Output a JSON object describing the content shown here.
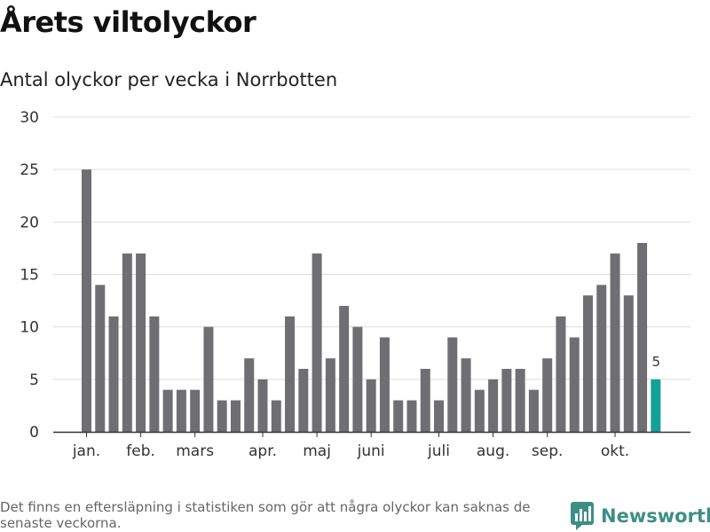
{
  "header": {
    "title": "Årets viltolyckor",
    "subtitle": "Antal olyckor per vecka i Norrbotten"
  },
  "footer": {
    "note": "Det finns en eftersläpning i statistiken som gör att några olyckor kan saknas de senaste veckorna.",
    "brand": "Newsworthy",
    "brand_icon": "bar-chart-logo-icon"
  },
  "colors": {
    "bar": "#6f6e73",
    "highlight": "#14a19a",
    "grid": "#dddddd",
    "axis": "#333333",
    "brand": "#3d8f86"
  },
  "chart_data": {
    "type": "bar",
    "title": "Antal olyckor per vecka i Norrbotten",
    "xlabel": "",
    "ylabel": "",
    "ylim": [
      0,
      30
    ],
    "yticks": [
      0,
      5,
      10,
      15,
      20,
      25,
      30
    ],
    "grid": true,
    "weeks": [
      1,
      2,
      3,
      4,
      5,
      6,
      7,
      8,
      9,
      10,
      11,
      12,
      13,
      14,
      15,
      16,
      17,
      18,
      19,
      20,
      21,
      22,
      23,
      24,
      25,
      26,
      27,
      28,
      29,
      30,
      31,
      32,
      33,
      34,
      35,
      36,
      37,
      38,
      39,
      40,
      41,
      42,
      43
    ],
    "values": [
      25,
      14,
      11,
      17,
      17,
      11,
      4,
      4,
      4,
      10,
      3,
      3,
      7,
      5,
      3,
      11,
      6,
      17,
      7,
      12,
      10,
      5,
      9,
      3,
      3,
      6,
      3,
      9,
      7,
      4,
      5,
      6,
      6,
      4,
      7,
      11,
      9,
      13,
      14,
      17,
      13,
      18,
      5
    ],
    "month_labels": [
      {
        "label": "jan.",
        "week": 1
      },
      {
        "label": "feb.",
        "week": 5
      },
      {
        "label": "mars",
        "week": 9
      },
      {
        "label": "apr.",
        "week": 14
      },
      {
        "label": "maj",
        "week": 18
      },
      {
        "label": "juni",
        "week": 22
      },
      {
        "label": "juli",
        "week": 27
      },
      {
        "label": "aug.",
        "week": 31
      },
      {
        "label": "sep.",
        "week": 35
      },
      {
        "label": "okt.",
        "week": 40
      }
    ],
    "highlight_index": 42,
    "annotations": [
      {
        "week": 43,
        "text": "5"
      }
    ]
  }
}
